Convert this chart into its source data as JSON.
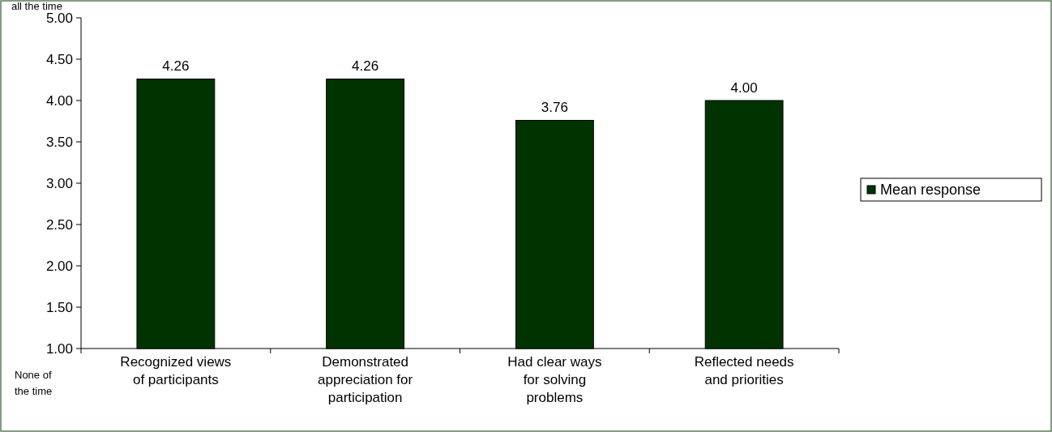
{
  "chart_data": {
    "type": "bar",
    "categories": [
      "Recognized views of participants",
      "Demonstrated appreciation for participation",
      "Had clear ways for solving problems",
      "Reflected needs and priorities"
    ],
    "series": [
      {
        "name": "Mean response",
        "color": "#003300",
        "values": [
          4.26,
          4.26,
          3.76,
          4.0
        ]
      }
    ],
    "ylim": [
      1,
      5
    ],
    "yticks": [
      {
        "value": 1,
        "label": "1.00"
      },
      {
        "value": 1.5,
        "label": "1.50"
      },
      {
        "value": 2,
        "label": "2.00"
      },
      {
        "value": 2.5,
        "label": "2.50"
      },
      {
        "value": 3,
        "label": "3.00"
      },
      {
        "value": 3.5,
        "label": "3.50"
      },
      {
        "value": 4,
        "label": "4.00"
      },
      {
        "value": 4.5,
        "label": "4.50"
      },
      {
        "value": 5,
        "label": "5.00"
      }
    ],
    "value_labels": [
      "4.26",
      "4.26",
      "3.76",
      "4.00"
    ],
    "legend": "right",
    "grid": false,
    "annotations": [
      "all the time",
      "None of the time"
    ]
  }
}
